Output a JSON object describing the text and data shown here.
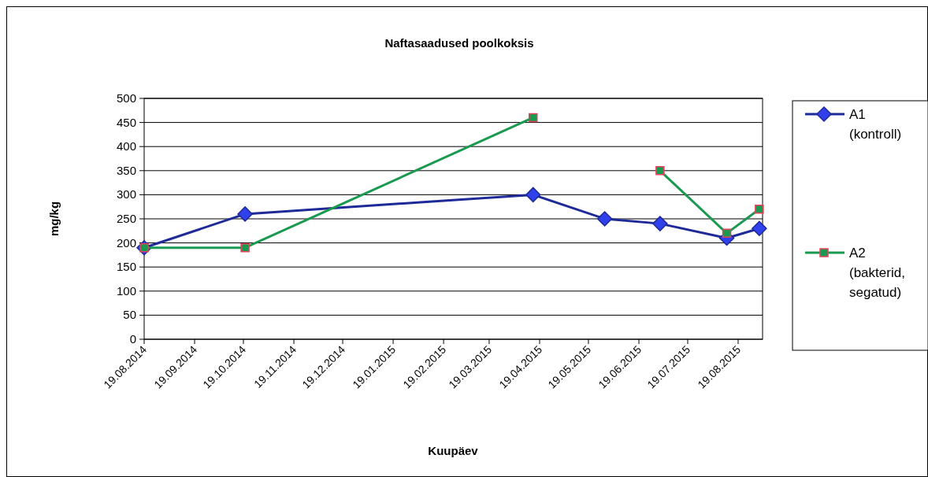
{
  "chart_data": {
    "type": "line",
    "title": "Naftasaadused poolkoksis",
    "xlabel": "Kuupäev",
    "ylabel": "mg/kg",
    "x": [
      "2014-08-19",
      "2014-10-20",
      "2015-04-15",
      "2015-05-29",
      "2015-07-02",
      "2015-08-12",
      "2015-09-01"
    ],
    "series": [
      {
        "name": "A1 (kontroll)",
        "color": "#1f2a99",
        "marker": "diamond",
        "values": [
          190,
          260,
          300,
          250,
          240,
          210,
          230
        ]
      },
      {
        "name": "A2 (bakterid, segatud)",
        "color": "#1a9a50",
        "marker": "square",
        "values": [
          190,
          190,
          460,
          null,
          350,
          220,
          270
        ]
      }
    ],
    "xlim": [
      "2014-08-19",
      "2015-09-03"
    ],
    "xticks": [
      {
        "value": "2014-08-19",
        "label": "19.08.2014"
      },
      {
        "value": "2014-09-19",
        "label": "19.09.2014"
      },
      {
        "value": "2014-10-19",
        "label": "19.10.2014"
      },
      {
        "value": "2014-11-19",
        "label": "19.11.2014"
      },
      {
        "value": "2014-12-19",
        "label": "19.12.2014"
      },
      {
        "value": "2015-01-19",
        "label": "19.01.2015"
      },
      {
        "value": "2015-02-19",
        "label": "19.02.2015"
      },
      {
        "value": "2015-03-19",
        "label": "19.03.2015"
      },
      {
        "value": "2015-04-19",
        "label": "19.04.2015"
      },
      {
        "value": "2015-05-19",
        "label": "19.05.2015"
      },
      {
        "value": "2015-06-19",
        "label": "19.06.2015"
      },
      {
        "value": "2015-07-19",
        "label": "19.07.2015"
      },
      {
        "value": "2015-08-19",
        "label": "19.08.2015"
      }
    ],
    "ylim": [
      0,
      500
    ],
    "yticks": [
      0,
      50,
      100,
      150,
      200,
      250,
      300,
      350,
      400,
      450,
      500
    ],
    "grid": "y",
    "legend": "right",
    "line_style": "solid"
  }
}
